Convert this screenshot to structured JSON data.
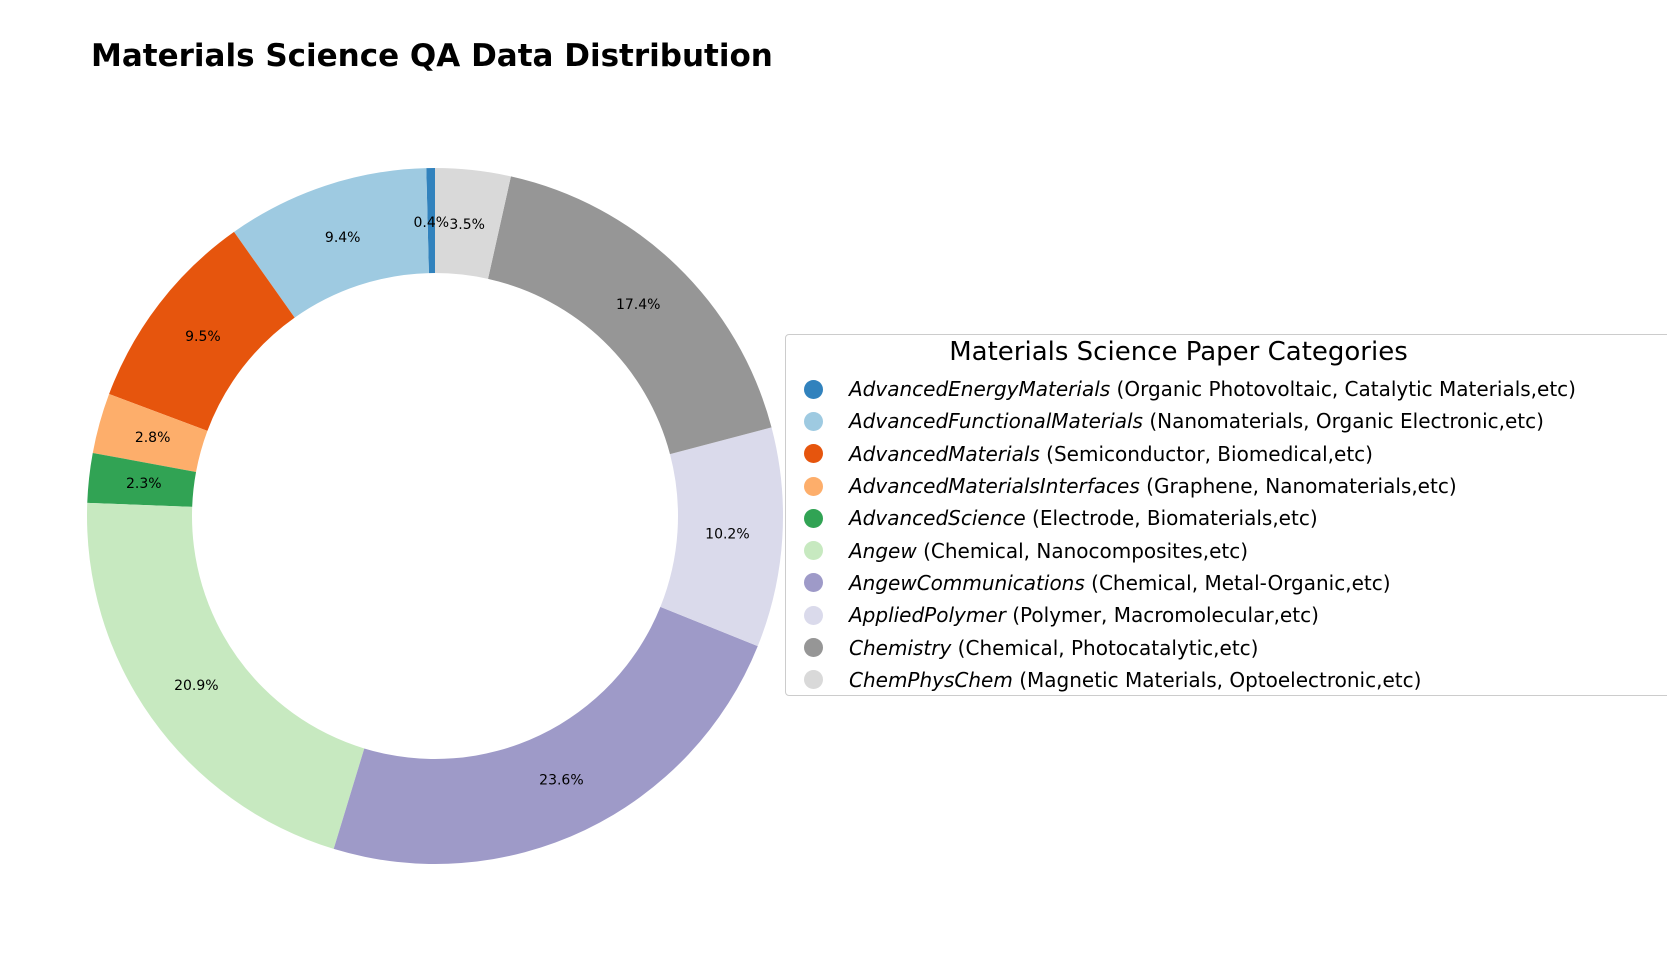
{
  "title": "Materials Science QA Data Distribution",
  "chart_data": {
    "type": "pie",
    "variant": "donut",
    "title": "Materials Science QA Data Distribution",
    "start_direction": "top",
    "order": "counter-clockwise",
    "value_unit": "%",
    "slices": [
      {
        "name": "AdvancedEnergyMaterials",
        "desc": "(Organic Photovoltaic, Catalytic Materials,etc)",
        "value": 0.4,
        "label": "0.4%",
        "color": "#3182bd"
      },
      {
        "name": "AdvancedFunctionalMaterials",
        "desc": "(Nanomaterials, Organic Electronic,etc)",
        "value": 9.4,
        "label": "9.4%",
        "color": "#9ecae1"
      },
      {
        "name": "AdvancedMaterials",
        "desc": "(Semiconductor, Biomedical,etc)",
        "value": 9.5,
        "label": "9.5%",
        "color": "#e6550d"
      },
      {
        "name": "AdvancedMaterialsInterfaces",
        "desc": "(Graphene, Nanomaterials,etc)",
        "value": 2.8,
        "label": "2.8%",
        "color": "#fdae6b"
      },
      {
        "name": "AdvancedScience",
        "desc": "(Electrode, Biomaterials,etc)",
        "value": 2.3,
        "label": "2.3%",
        "color": "#31a354"
      },
      {
        "name": "Angew",
        "desc": "(Chemical, Nanocomposites,etc)",
        "value": 20.9,
        "label": "20.9%",
        "color": "#c7e9c0"
      },
      {
        "name": "AngewCommunications",
        "desc": "(Chemical, Metal-Organic,etc)",
        "value": 23.6,
        "label": "23.6%",
        "color": "#9e9ac8"
      },
      {
        "name": "AppliedPolymer",
        "desc": "(Polymer, Macromolecular,etc)",
        "value": 10.2,
        "label": "10.2%",
        "color": "#dadaeb"
      },
      {
        "name": "Chemistry",
        "desc": "(Chemical, Photocatalytic,etc)",
        "value": 17.4,
        "label": "17.4%",
        "color": "#969696"
      },
      {
        "name": "ChemPhysChem",
        "desc": "(Magnetic Materials, Optoelectronic,etc)",
        "value": 3.5,
        "label": "3.5%",
        "color": "#d9d9d9"
      }
    ],
    "legend": {
      "title": "Materials Science Paper Categories",
      "placement": "right"
    }
  }
}
